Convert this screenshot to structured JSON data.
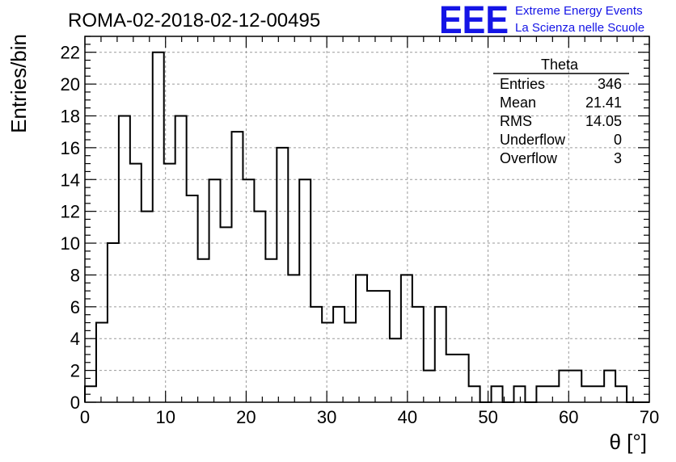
{
  "chart_data": {
    "type": "bar",
    "title": "ROMA-02-2018-02-12-00495",
    "xlabel": "θ [°]",
    "ylabel": "Entries/bin",
    "xlim": [
      0,
      70
    ],
    "ylim": [
      0,
      23
    ],
    "grid": true,
    "bin_width": 1.4,
    "x_ticks": [
      0,
      10,
      20,
      30,
      40,
      50,
      60,
      70
    ],
    "y_ticks": [
      0,
      2,
      4,
      6,
      8,
      10,
      12,
      14,
      16,
      18,
      20,
      22
    ],
    "values": [
      1,
      5,
      10,
      18,
      15,
      12,
      22,
      15,
      18,
      13,
      9,
      14,
      11,
      17,
      14,
      12,
      9,
      16,
      8,
      14,
      6,
      5,
      6,
      5,
      8,
      7,
      7,
      4,
      8,
      6,
      2,
      6,
      3,
      3,
      1,
      0,
      1,
      0,
      1,
      0,
      1,
      1,
      2,
      2,
      1,
      1,
      2,
      1,
      0,
      0
    ],
    "stats_box": {
      "name": "Theta",
      "rows": [
        {
          "label": "Entries",
          "value": "346"
        },
        {
          "label": "Mean",
          "value": "21.41"
        },
        {
          "label": "RMS",
          "value": "14.05"
        },
        {
          "label": "Underflow",
          "value": "0"
        },
        {
          "label": "Overflow",
          "value": "3"
        }
      ]
    }
  },
  "logo": {
    "mark": "EEE",
    "line1": "Extreme Energy Events",
    "line2": "La Scienza nelle Scuole",
    "color": "#1414e6"
  }
}
